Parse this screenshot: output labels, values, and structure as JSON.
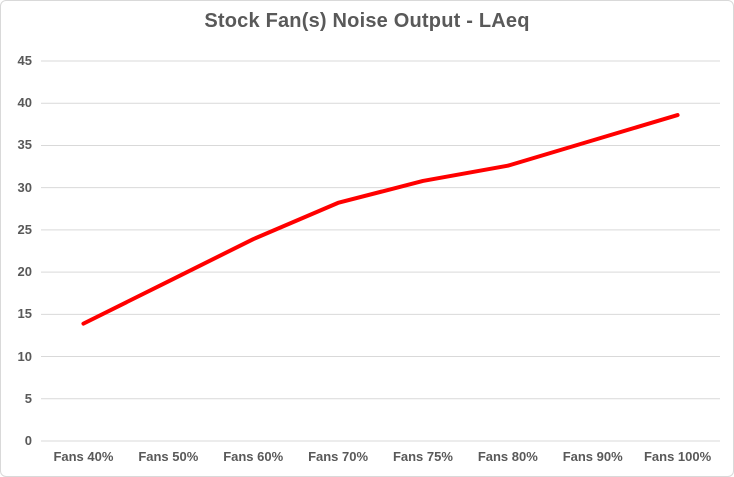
{
  "chart_data": {
    "type": "line",
    "title": "Stock Fan(s) Noise Output - LAeq",
    "categories": [
      "Fans 40%",
      "Fans 50%",
      "Fans 60%",
      "Fans 70%",
      "Fans 75%",
      "Fans 80%",
      "Fans 90%",
      "Fans 100%"
    ],
    "series": [
      {
        "name": "LAeq",
        "values": [
          13.9,
          18.9,
          23.9,
          28.2,
          30.8,
          32.6,
          35.6,
          38.6
        ],
        "color": "#FF0000"
      }
    ],
    "xlabel": "",
    "ylabel": "",
    "ylim": [
      0,
      45
    ],
    "ytick_step": 5,
    "ytick_labels": [
      "0",
      "5",
      "10",
      "15",
      "20",
      "25",
      "30",
      "35",
      "40",
      "45"
    ],
    "grid": true,
    "legend_position": "none",
    "colors": {
      "text": "#595959",
      "gridline": "#D9D9D9",
      "border": "#D9D9D9",
      "background": "#FFFFFF"
    }
  }
}
